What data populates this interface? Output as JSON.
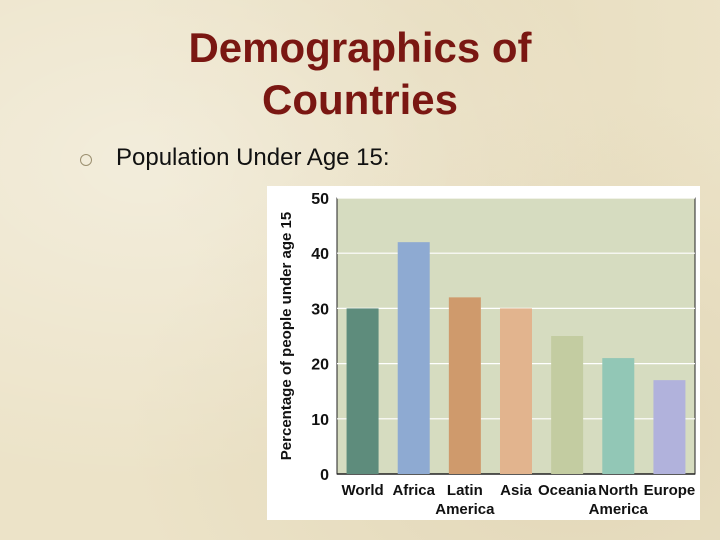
{
  "slide": {
    "title_line1": "Demographics of",
    "title_line2": "Countries",
    "bullet": "Population Under Age 15:"
  },
  "colors": {
    "title": "#7a1712",
    "plot_bg": "#d6dcc0",
    "grid": "#ffffff"
  },
  "chart_data": {
    "type": "bar",
    "categories": [
      "World",
      "Africa",
      "Latin America",
      "Asia",
      "Oceania",
      "North America",
      "Europe"
    ],
    "category_lines": [
      [
        "World"
      ],
      [
        "Africa"
      ],
      [
        "Latin",
        "America"
      ],
      [
        "Asia"
      ],
      [
        "Oceania"
      ],
      [
        "North",
        "America"
      ],
      [
        "Europe"
      ]
    ],
    "values": [
      30,
      42,
      32,
      30,
      25,
      21,
      17
    ],
    "bar_colors": [
      "#5e8c7c",
      "#8eaad2",
      "#cf9a6c",
      "#e2b48e",
      "#c3cca1",
      "#92c7b6",
      "#b1b2dc"
    ],
    "ylabel": "Percentage of people under age 15",
    "xlabel": "",
    "ylim": [
      0,
      50
    ],
    "yticks": [
      0,
      10,
      20,
      30,
      40,
      50
    ],
    "grid": true
  }
}
